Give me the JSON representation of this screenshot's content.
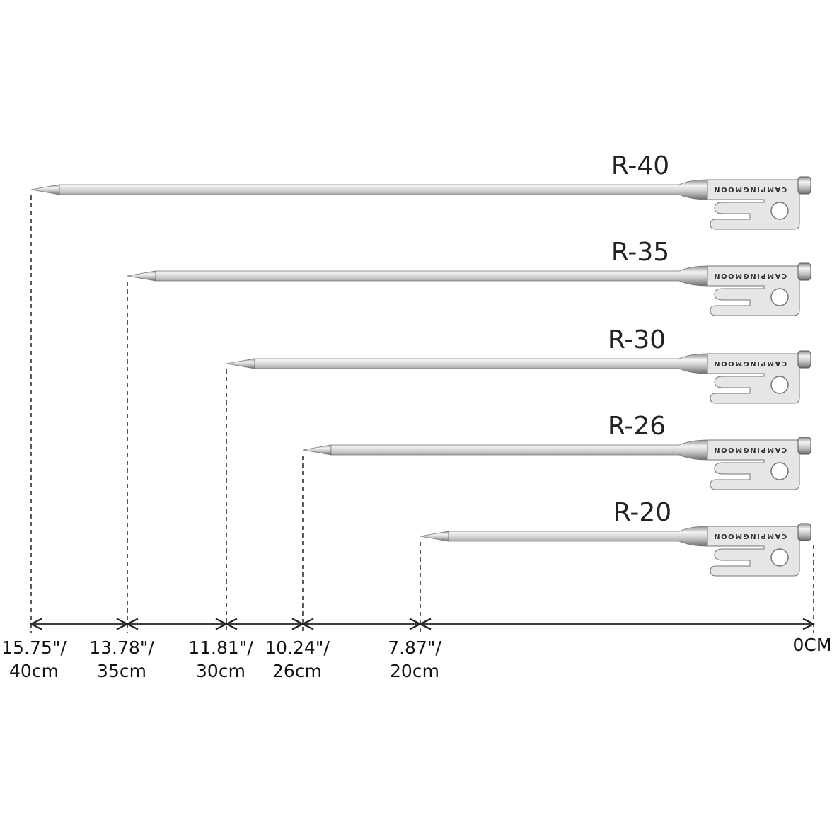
{
  "pegs": [
    {
      "label": "R-40",
      "brand": "CAMPINGMOON"
    },
    {
      "label": "R-35",
      "brand": "CAMPINGMOON"
    },
    {
      "label": "R-30",
      "brand": "CAMPINGMOON"
    },
    {
      "label": "R-26",
      "brand": "CAMPINGMOON"
    },
    {
      "label": "R-20",
      "brand": "CAMPINGMOON"
    }
  ],
  "measurements": [
    {
      "inch": "15.75\"/",
      "cm": "40cm"
    },
    {
      "inch": "13.78\"/",
      "cm": "35cm"
    },
    {
      "inch": "11.81\"/",
      "cm": "30cm"
    },
    {
      "inch": "10.24\"/",
      "cm": "26cm"
    },
    {
      "inch": "7.87\"/",
      "cm": "20cm"
    }
  ],
  "zero": "0CM"
}
